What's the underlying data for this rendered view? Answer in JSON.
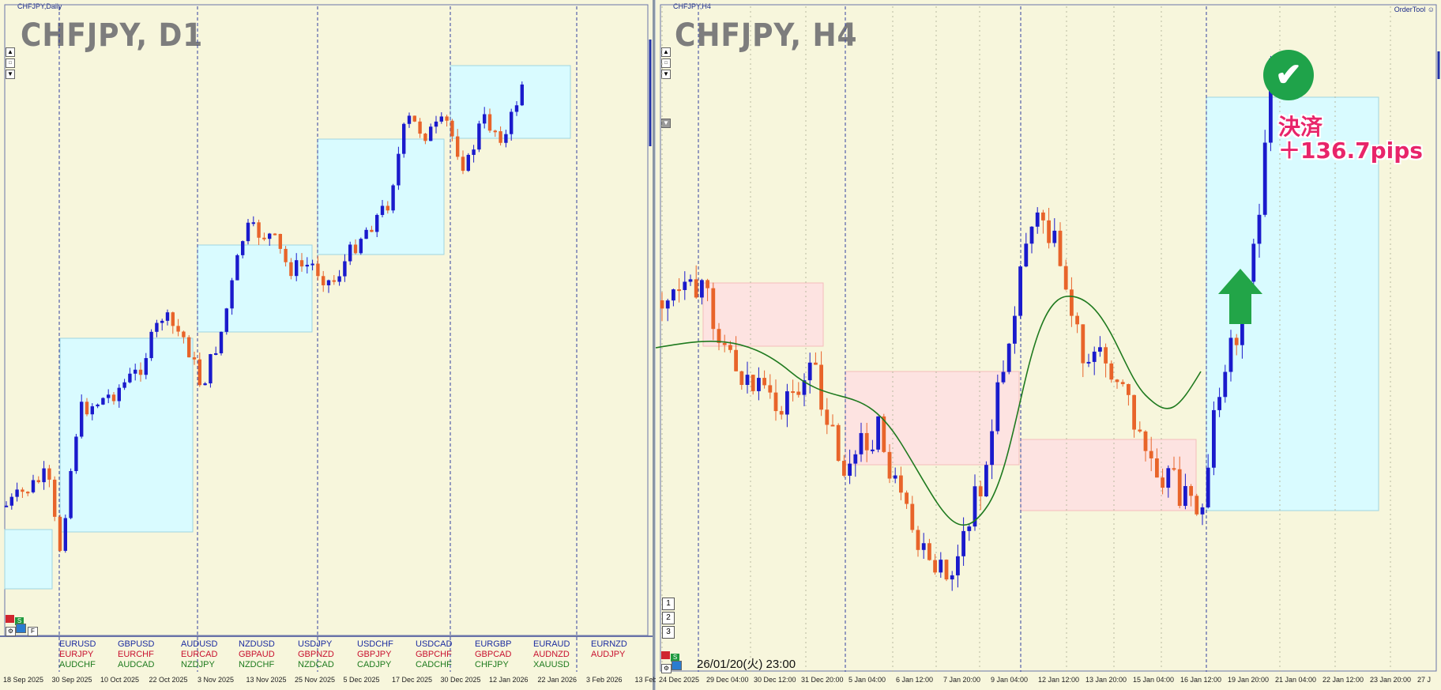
{
  "left_chart": {
    "window_title": "CHFJPY,Daily",
    "title": "CHFJPY, D1",
    "x_labels": [
      "18 Sep 2025",
      "30 Sep 2025",
      "10 Oct 2025",
      "22 Oct 2025",
      "3 Nov 2025",
      "13 Nov 2025",
      "25 Nov 2025",
      "5 Dec 2025",
      "17 Dec 2025",
      "30 Dec 2025",
      "12 Jan 2026",
      "22 Jan 2026",
      "3 Feb 2026",
      "13 Feb"
    ],
    "f_button": "F",
    "pairs": [
      {
        "blue": "EURUSD",
        "red": "EURJPY",
        "green": "AUDCHF"
      },
      {
        "blue": "GBPUSD",
        "red": "EURCHF",
        "green": "AUDCAD"
      },
      {
        "blue": "AUDUSD",
        "red": "EURCAD",
        "green": "NZDJPY"
      },
      {
        "blue": "NZDUSD",
        "red": "GBPAUD",
        "green": "NZDCHF"
      },
      {
        "blue": "USDJPY",
        "red": "GBPNZD",
        "green": "NZDCAD"
      },
      {
        "blue": "USDCHF",
        "red": "GBPJPY",
        "green": "CADJPY"
      },
      {
        "blue": "USDCAD",
        "red": "GBPCHF",
        "green": "CADCHF"
      },
      {
        "blue": "EURGBP",
        "red": "GBPCAD",
        "green": "CHFJPY"
      },
      {
        "blue": "EURAUD",
        "red": "AUDNZD",
        "green": "XAUUSD"
      },
      {
        "blue": "EURNZD",
        "red": "AUDJPY",
        "green": ""
      }
    ]
  },
  "right_chart": {
    "window_title": "CHFJPY,H4",
    "title": "CHFJPY, H4",
    "ordertool": "OrderTool",
    "x_labels": [
      "24 Dec 2025",
      "29 Dec 04:00",
      "30 Dec 12:00",
      "31 Dec 20:00",
      "5 Jan 04:00",
      "6 Jan 12:00",
      "7 Jan 20:00",
      "9 Jan 04:00",
      "12 Jan 12:00",
      "13 Jan 20:00",
      "15 Jan 04:00",
      "16 Jan 12:00",
      "19 Jan 20:00",
      "21 Jan 04:00",
      "22 Jan 12:00",
      "23 Jan 20:00",
      "27 J"
    ],
    "nav_buttons": [
      "1",
      "2",
      "3"
    ],
    "timestamp": "26/01/20(火) 23:00",
    "settle_line1": "決済",
    "settle_line2": "＋136.7pips",
    "check_symbol": "✔"
  },
  "colors": {
    "bull": "#1a1acc",
    "bear": "#e8642a",
    "blue_box": "#d9fbff",
    "pink_box": "#fde3e1",
    "ma_line": "#1f7a1f",
    "arrow": "#22a548",
    "background": "#f7f6dc"
  },
  "misc": {
    "red_btn": "",
    "green_btn": "S"
  }
}
